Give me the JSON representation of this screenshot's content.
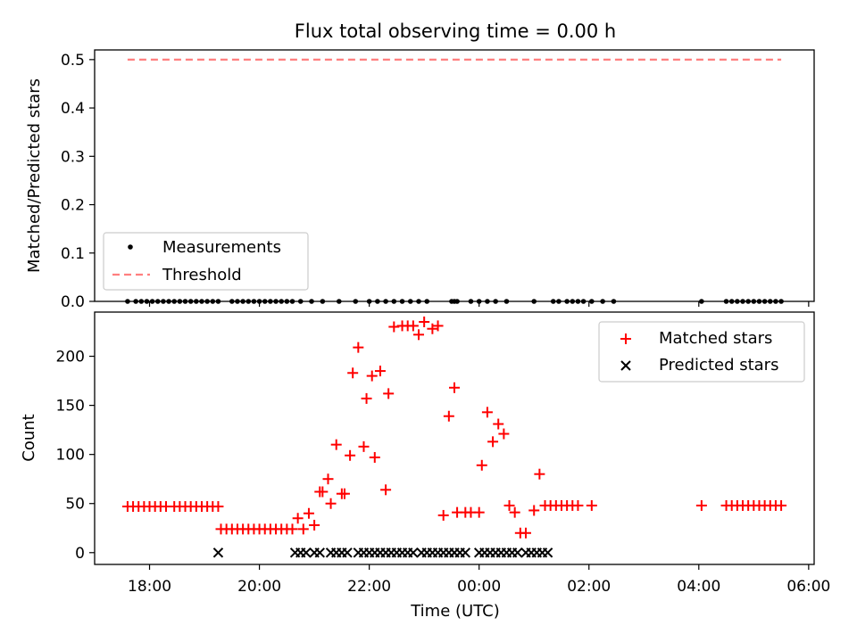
{
  "chart_data": [
    {
      "type": "scatter",
      "title": "Flux total observing time = 0.00 h",
      "xlabel": "",
      "ylabel": "Matched/Predicted stars",
      "xlim": [
        17.0,
        30.1
      ],
      "ylim": [
        0.0,
        0.52
      ],
      "yticks": [
        "0.0",
        "0.1",
        "0.2",
        "0.3",
        "0.4",
        "0.5"
      ],
      "ytick_values": [
        0.0,
        0.1,
        0.2,
        0.3,
        0.4,
        0.5
      ],
      "legend": {
        "position": "lower-left",
        "entries": [
          "Measurements",
          "Threshold"
        ]
      },
      "threshold": {
        "name": "Threshold",
        "value": 0.5,
        "x_range": [
          17.6,
          29.5
        ],
        "color": "#ff7f7f"
      },
      "series": [
        {
          "name": "Measurements",
          "marker": "dot",
          "color": "#000000",
          "x": [
            17.6,
            17.75,
            17.85,
            17.95,
            18.05,
            18.15,
            18.25,
            18.35,
            18.45,
            18.55,
            18.65,
            18.75,
            18.85,
            18.95,
            19.05,
            19.15,
            19.25,
            19.5,
            19.6,
            19.7,
            19.8,
            19.9,
            20.0,
            20.1,
            20.2,
            20.3,
            20.4,
            20.5,
            20.6,
            20.75,
            20.95,
            21.15,
            21.45,
            21.75,
            22.0,
            22.15,
            22.3,
            22.45,
            22.6,
            22.75,
            22.9,
            23.05,
            23.5,
            23.55,
            23.6,
            23.85,
            24.0,
            24.15,
            24.3,
            24.5,
            25.0,
            25.35,
            25.45,
            25.6,
            25.7,
            25.8,
            25.9,
            26.05,
            26.25,
            26.45,
            28.05,
            28.5,
            28.6,
            28.7,
            28.8,
            28.9,
            29.0,
            29.1,
            29.2,
            29.3,
            29.4,
            29.5
          ],
          "y": [
            0,
            0,
            0,
            0,
            0,
            0,
            0,
            0,
            0,
            0,
            0,
            0,
            0,
            0,
            0,
            0,
            0,
            0,
            0,
            0,
            0,
            0,
            0,
            0,
            0,
            0,
            0,
            0,
            0,
            0,
            0,
            0,
            0,
            0,
            0,
            0,
            0,
            0,
            0,
            0,
            0,
            0,
            0,
            0,
            0,
            0,
            0,
            0,
            0,
            0,
            0,
            0,
            0,
            0,
            0,
            0,
            0,
            0,
            0,
            0,
            0,
            0,
            0,
            0,
            0,
            0,
            0,
            0,
            0,
            0,
            0,
            0
          ]
        }
      ]
    },
    {
      "type": "scatter",
      "title": "",
      "xlabel": "Time (UTC)",
      "ylabel": "Count",
      "xlim": [
        17.0,
        30.1
      ],
      "ylim": [
        -12,
        245
      ],
      "yticks": [
        "0",
        "50",
        "100",
        "150",
        "200"
      ],
      "ytick_values": [
        0,
        50,
        100,
        150,
        200
      ],
      "xticks": [
        "18:00",
        "20:00",
        "22:00",
        "00:00",
        "02:00",
        "04:00",
        "06:00"
      ],
      "xtick_values": [
        18,
        20,
        22,
        24,
        26,
        28,
        30
      ],
      "legend": {
        "position": "upper-right",
        "entries": [
          "Matched stars",
          "Predicted stars"
        ]
      },
      "series": [
        {
          "name": "Matched stars",
          "marker": "plus",
          "color": "#ff0000",
          "x": [
            17.6,
            17.7,
            17.8,
            17.9,
            18.0,
            18.1,
            18.2,
            18.3,
            18.45,
            18.55,
            18.65,
            18.75,
            18.85,
            18.95,
            19.05,
            19.15,
            19.25,
            19.3,
            19.4,
            19.5,
            19.6,
            19.7,
            19.8,
            19.9,
            20.0,
            20.1,
            20.2,
            20.3,
            20.4,
            20.5,
            20.6,
            20.7,
            20.8,
            20.9,
            21.0,
            21.1,
            21.15,
            21.25,
            21.3,
            21.4,
            21.5,
            21.55,
            21.65,
            21.7,
            21.8,
            21.9,
            21.95,
            22.05,
            22.1,
            22.2,
            22.3,
            22.35,
            22.45,
            22.6,
            22.7,
            22.8,
            22.9,
            23.0,
            23.15,
            23.25,
            23.35,
            23.45,
            23.55,
            23.6,
            23.75,
            23.85,
            24.0,
            24.05,
            24.15,
            24.25,
            24.35,
            24.45,
            24.55,
            24.65,
            24.75,
            24.85,
            25.0,
            25.1,
            25.2,
            25.3,
            25.4,
            25.5,
            25.6,
            25.7,
            25.8,
            26.05,
            28.05,
            28.5,
            28.6,
            28.7,
            28.8,
            28.9,
            29.0,
            29.1,
            29.2,
            29.3,
            29.4,
            29.5
          ],
          "y": [
            47,
            47,
            47,
            47,
            47,
            47,
            47,
            47,
            47,
            47,
            47,
            47,
            47,
            47,
            47,
            47,
            47,
            24,
            24,
            24,
            24,
            24,
            24,
            24,
            24,
            24,
            24,
            24,
            24,
            24,
            24,
            35,
            24,
            40,
            28,
            62,
            62,
            75,
            50,
            110,
            60,
            60,
            99,
            183,
            209,
            108,
            157,
            180,
            97,
            185,
            64,
            162,
            230,
            231,
            231,
            231,
            222,
            235,
            228,
            231,
            38,
            139,
            168,
            41,
            41,
            41,
            41,
            89,
            143,
            113,
            131,
            121,
            48,
            41,
            20,
            20,
            43,
            80,
            48,
            48,
            48,
            48,
            48,
            48,
            48,
            48,
            48,
            48,
            48,
            48,
            48,
            48,
            48,
            48,
            48,
            48,
            48,
            48
          ],
          "_note": "Approximate values read from the chart."
        },
        {
          "name": "Predicted stars",
          "marker": "x",
          "color": "#000000",
          "x": [
            19.25,
            20.65,
            20.75,
            20.85,
            21.0,
            21.1,
            21.3,
            21.4,
            21.5,
            21.6,
            21.8,
            21.9,
            22.0,
            22.1,
            22.2,
            22.3,
            22.4,
            22.5,
            22.6,
            22.7,
            22.8,
            22.95,
            23.05,
            23.15,
            23.25,
            23.35,
            23.45,
            23.55,
            23.65,
            23.75,
            24.0,
            24.1,
            24.2,
            24.3,
            24.4,
            24.5,
            24.6,
            24.7,
            24.85,
            24.95,
            25.05,
            25.15,
            25.25
          ],
          "y": [
            0,
            0,
            0,
            0,
            0,
            0,
            0,
            0,
            0,
            0,
            0,
            0,
            0,
            0,
            0,
            0,
            0,
            0,
            0,
            0,
            0,
            0,
            0,
            0,
            0,
            0,
            0,
            0,
            0,
            0,
            0,
            0,
            0,
            0,
            0,
            0,
            0,
            0,
            0,
            0,
            0,
            0,
            0
          ]
        }
      ]
    }
  ]
}
